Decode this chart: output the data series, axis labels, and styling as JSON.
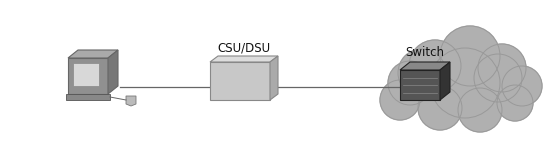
{
  "bg_color": "#ffffff",
  "line_color": "#666666",
  "cloud_color": "#b0b0b0",
  "cloud_edge_color": "#999999",
  "csu_box_color": "#c8c8c8",
  "csu_box_edge": "#888888",
  "csu_label": "CSU/DSU",
  "switch_label": "Switch",
  "label_fontsize": 8.5,
  "computer_color": "#909090",
  "computer_screen": "#d8d8d8",
  "switch_front": "#555555",
  "switch_top": "#888888",
  "switch_right": "#333333"
}
